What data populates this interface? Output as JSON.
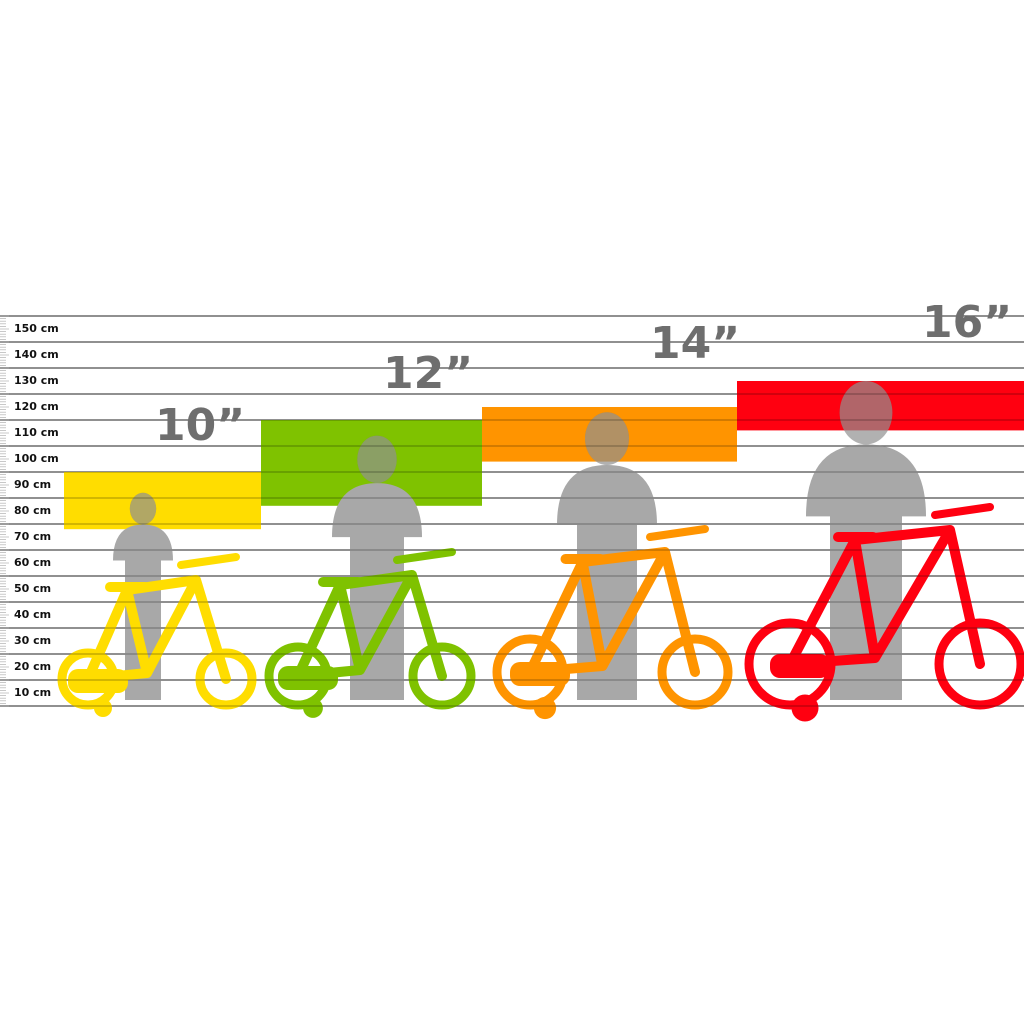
{
  "chart_data": {
    "type": "bar",
    "yunit": "cm",
    "ylim": [
      0,
      150
    ],
    "y_ticks": [
      "150 cm",
      "140 cm",
      "130 cm",
      "120 cm",
      "110 cm",
      "100 cm",
      "90 cm",
      "80 cm",
      "70 cm",
      "60 cm",
      "50 cm",
      "40 cm",
      "30 cm",
      "20 cm",
      "10 cm"
    ],
    "grid": true,
    "categories": [
      "10”",
      "12”",
      "14”",
      "16”"
    ],
    "height_ranges": [
      [
        68,
        90
      ],
      [
        77,
        110
      ],
      [
        94,
        115
      ],
      [
        106,
        125
      ]
    ],
    "colors": [
      "#ffdd00",
      "#7fc200",
      "#ff9400",
      "#ff0010"
    ],
    "silhouette_color": "#a8a8a8"
  }
}
